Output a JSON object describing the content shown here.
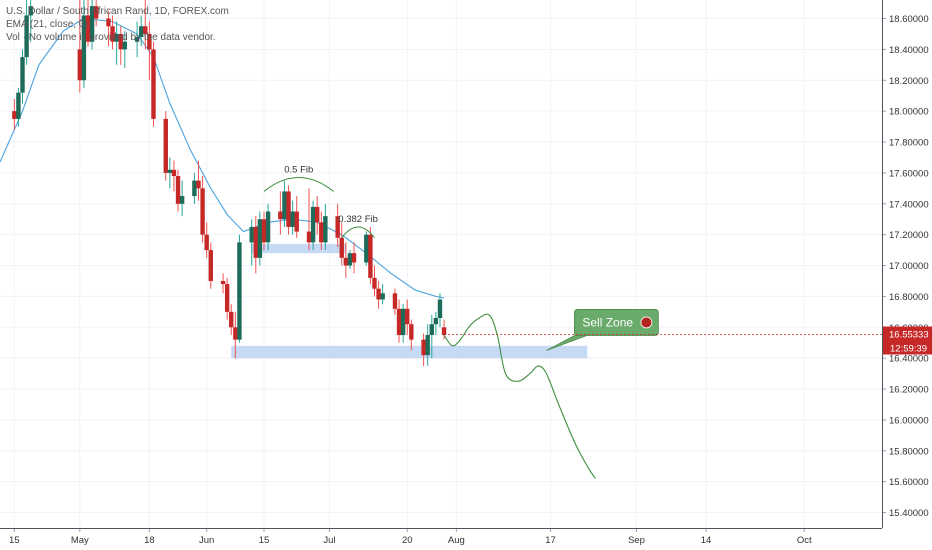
{
  "legend": {
    "title": "U.S. Dollar / South African Rand, 1D, FOREX.com",
    "ema": "EMA (21, close, 0)",
    "volume": "Vol · No volume is provided by the data vendor."
  },
  "colors": {
    "up": "#26a69a",
    "down": "#ef5350",
    "up_body": "#1e6b5a",
    "down_body": "#c62828",
    "ema": "#4aa3df",
    "zone": "#bcd4f5",
    "projection": "#3f8f3f",
    "callout": "#6aaa6a",
    "price_badge": "#c62828"
  },
  "chart_data": {
    "type": "candlestick",
    "title": "U.S. Dollar / South African Rand, 1D, FOREX.com",
    "ylim": [
      15.3,
      18.72
    ],
    "y_ticks": [
      "18.60000",
      "18.40000",
      "18.20000",
      "18.00000",
      "17.80000",
      "17.60000",
      "17.40000",
      "17.20000",
      "17.00000",
      "16.80000",
      "16.60000",
      "16.40000",
      "16.20000",
      "16.00000",
      "15.80000",
      "15.60000",
      "15.40000"
    ],
    "x_ticks": [
      {
        "label": "15",
        "day": 0
      },
      {
        "label": "May",
        "day": 16
      },
      {
        "label": "18",
        "day": 33
      },
      {
        "label": "Jun",
        "day": 47
      },
      {
        "label": "15",
        "day": 61
      },
      {
        "label": "Jul",
        "day": 77
      },
      {
        "label": "20",
        "day": 96
      },
      {
        "label": "Aug",
        "day": 108
      },
      {
        "label": "17",
        "day": 131
      },
      {
        "label": "Sep",
        "day": 152
      },
      {
        "label": "14",
        "day": 169
      },
      {
        "label": "Oct",
        "day": 193
      }
    ],
    "x_range": [
      -3.5,
      212
    ],
    "candles": [
      {
        "d": 0,
        "o": 18.0,
        "h": 18.08,
        "l": 17.88,
        "c": 17.95
      },
      {
        "d": 1,
        "o": 17.95,
        "h": 18.15,
        "l": 17.9,
        "c": 18.12
      },
      {
        "d": 2,
        "o": 18.12,
        "h": 18.4,
        "l": 18.05,
        "c": 18.35
      },
      {
        "d": 3,
        "o": 18.35,
        "h": 18.72,
        "l": 18.3,
        "c": 18.62
      },
      {
        "d": 4,
        "o": 18.62,
        "h": 18.72,
        "l": 18.45,
        "c": 18.68
      },
      {
        "d": 16,
        "o": 18.4,
        "h": 18.72,
        "l": 18.12,
        "c": 18.2
      },
      {
        "d": 17,
        "o": 18.2,
        "h": 18.72,
        "l": 18.15,
        "c": 18.62
      },
      {
        "d": 18,
        "o": 18.62,
        "h": 18.72,
        "l": 18.42,
        "c": 18.45
      },
      {
        "d": 19,
        "o": 18.45,
        "h": 18.72,
        "l": 18.4,
        "c": 18.68
      },
      {
        "d": 20,
        "o": 18.68,
        "h": 18.72,
        "l": 18.55,
        "c": 18.6
      },
      {
        "d": 23,
        "o": 18.6,
        "h": 18.65,
        "l": 18.42,
        "c": 18.55
      },
      {
        "d": 24,
        "o": 18.55,
        "h": 18.62,
        "l": 18.4,
        "c": 18.45
      },
      {
        "d": 25,
        "o": 18.45,
        "h": 18.58,
        "l": 18.3,
        "c": 18.5
      },
      {
        "d": 26,
        "o": 18.5,
        "h": 18.55,
        "l": 18.3,
        "c": 18.4
      },
      {
        "d": 27,
        "o": 18.4,
        "h": 18.52,
        "l": 18.28,
        "c": 18.45
      },
      {
        "d": 30,
        "o": 18.45,
        "h": 18.58,
        "l": 18.35,
        "c": 18.48
      },
      {
        "d": 31,
        "o": 18.48,
        "h": 18.62,
        "l": 18.42,
        "c": 18.55
      },
      {
        "d": 32,
        "o": 18.55,
        "h": 18.72,
        "l": 18.4,
        "c": 18.5
      },
      {
        "d": 33,
        "o": 18.5,
        "h": 18.58,
        "l": 18.2,
        "c": 18.4
      },
      {
        "d": 34,
        "o": 18.4,
        "h": 18.45,
        "l": 17.9,
        "c": 17.95
      },
      {
        "d": 37,
        "o": 17.95,
        "h": 18.0,
        "l": 17.55,
        "c": 17.6
      },
      {
        "d": 38,
        "o": 17.6,
        "h": 17.7,
        "l": 17.5,
        "c": 17.62
      },
      {
        "d": 39,
        "o": 17.62,
        "h": 17.68,
        "l": 17.48,
        "c": 17.58
      },
      {
        "d": 40,
        "o": 17.58,
        "h": 17.62,
        "l": 17.35,
        "c": 17.4
      },
      {
        "d": 41,
        "o": 17.4,
        "h": 17.55,
        "l": 17.32,
        "c": 17.45
      },
      {
        "d": 44,
        "o": 17.45,
        "h": 17.6,
        "l": 17.4,
        "c": 17.55
      },
      {
        "d": 45,
        "o": 17.55,
        "h": 17.68,
        "l": 17.42,
        "c": 17.5
      },
      {
        "d": 46,
        "o": 17.5,
        "h": 17.58,
        "l": 17.15,
        "c": 17.2
      },
      {
        "d": 47,
        "o": 17.2,
        "h": 17.28,
        "l": 17.05,
        "c": 17.1
      },
      {
        "d": 48,
        "o": 17.1,
        "h": 17.15,
        "l": 16.85,
        "c": 16.9
      },
      {
        "d": 51,
        "o": 16.9,
        "h": 16.95,
        "l": 16.82,
        "c": 16.88
      },
      {
        "d": 52,
        "o": 16.88,
        "h": 16.92,
        "l": 16.65,
        "c": 16.7
      },
      {
        "d": 53,
        "o": 16.7,
        "h": 16.75,
        "l": 16.55,
        "c": 16.6
      },
      {
        "d": 54,
        "o": 16.6,
        "h": 16.7,
        "l": 16.4,
        "c": 16.52
      },
      {
        "d": 55,
        "o": 16.52,
        "h": 17.2,
        "l": 16.5,
        "c": 17.15
      },
      {
        "d": 58,
        "o": 17.15,
        "h": 17.3,
        "l": 17.0,
        "c": 17.25
      },
      {
        "d": 59,
        "o": 17.25,
        "h": 17.32,
        "l": 16.95,
        "c": 17.05
      },
      {
        "d": 60,
        "o": 17.05,
        "h": 17.35,
        "l": 17.0,
        "c": 17.3
      },
      {
        "d": 61,
        "o": 17.3,
        "h": 17.35,
        "l": 17.1,
        "c": 17.15
      },
      {
        "d": 62,
        "o": 17.15,
        "h": 17.4,
        "l": 17.1,
        "c": 17.35
      },
      {
        "d": 65,
        "o": 17.35,
        "h": 17.48,
        "l": 17.2,
        "c": 17.3
      },
      {
        "d": 66,
        "o": 17.3,
        "h": 17.55,
        "l": 17.25,
        "c": 17.48
      },
      {
        "d": 67,
        "o": 17.48,
        "h": 17.52,
        "l": 17.2,
        "c": 17.25
      },
      {
        "d": 68,
        "o": 17.25,
        "h": 17.42,
        "l": 17.2,
        "c": 17.35
      },
      {
        "d": 69,
        "o": 17.35,
        "h": 17.45,
        "l": 17.18,
        "c": 17.22
      },
      {
        "d": 72,
        "o": 17.22,
        "h": 17.5,
        "l": 17.1,
        "c": 17.15
      },
      {
        "d": 73,
        "o": 17.15,
        "h": 17.42,
        "l": 17.1,
        "c": 17.38
      },
      {
        "d": 74,
        "o": 17.38,
        "h": 17.45,
        "l": 17.2,
        "c": 17.28
      },
      {
        "d": 75,
        "o": 17.28,
        "h": 17.35,
        "l": 17.1,
        "c": 17.15
      },
      {
        "d": 76,
        "o": 17.15,
        "h": 17.4,
        "l": 17.1,
        "c": 17.32
      },
      {
        "d": 79,
        "o": 17.32,
        "h": 17.4,
        "l": 17.12,
        "c": 17.18
      },
      {
        "d": 80,
        "o": 17.18,
        "h": 17.28,
        "l": 17.0,
        "c": 17.05
      },
      {
        "d": 81,
        "o": 17.05,
        "h": 17.15,
        "l": 16.92,
        "c": 17.0
      },
      {
        "d": 82,
        "o": 17.0,
        "h": 17.1,
        "l": 16.98,
        "c": 17.08
      },
      {
        "d": 83,
        "o": 17.08,
        "h": 17.15,
        "l": 16.95,
        "c": 17.02
      },
      {
        "d": 86,
        "o": 17.02,
        "h": 17.22,
        "l": 17.0,
        "c": 17.2
      },
      {
        "d": 87,
        "o": 17.2,
        "h": 17.25,
        "l": 16.88,
        "c": 16.92
      },
      {
        "d": 88,
        "o": 16.92,
        "h": 17.0,
        "l": 16.8,
        "c": 16.85
      },
      {
        "d": 89,
        "o": 16.85,
        "h": 16.9,
        "l": 16.72,
        "c": 16.78
      },
      {
        "d": 90,
        "o": 16.78,
        "h": 16.88,
        "l": 16.75,
        "c": 16.82
      },
      {
        "d": 93,
        "o": 16.82,
        "h": 16.85,
        "l": 16.68,
        "c": 16.72
      },
      {
        "d": 94,
        "o": 16.72,
        "h": 16.78,
        "l": 16.5,
        "c": 16.55
      },
      {
        "d": 95,
        "o": 16.55,
        "h": 16.75,
        "l": 16.5,
        "c": 16.72
      },
      {
        "d": 96,
        "o": 16.72,
        "h": 16.78,
        "l": 16.55,
        "c": 16.62
      },
      {
        "d": 97,
        "o": 16.62,
        "h": 16.65,
        "l": 16.45,
        "c": 16.52
      },
      {
        "d": 100,
        "o": 16.52,
        "h": 16.56,
        "l": 16.35,
        "c": 16.42
      },
      {
        "d": 101,
        "o": 16.42,
        "h": 16.62,
        "l": 16.35,
        "c": 16.55
      },
      {
        "d": 102,
        "o": 16.55,
        "h": 16.68,
        "l": 16.4,
        "c": 16.62
      },
      {
        "d": 103,
        "o": 16.62,
        "h": 16.7,
        "l": 16.55,
        "c": 16.66
      },
      {
        "d": 104,
        "o": 16.66,
        "h": 16.82,
        "l": 16.6,
        "c": 16.78
      },
      {
        "d": 105,
        "o": 16.6,
        "h": 16.65,
        "l": 16.52,
        "c": 16.55
      }
    ],
    "ema": [
      [
        -3.5,
        17.67
      ],
      [
        2,
        18.0
      ],
      [
        6,
        18.3
      ],
      [
        12,
        18.52
      ],
      [
        17,
        18.6
      ],
      [
        24,
        18.58
      ],
      [
        30,
        18.5
      ],
      [
        34,
        18.35
      ],
      [
        38,
        18.05
      ],
      [
        43,
        17.75
      ],
      [
        48,
        17.5
      ],
      [
        52,
        17.33
      ],
      [
        56,
        17.22
      ],
      [
        62,
        17.28
      ],
      [
        68,
        17.3
      ],
      [
        74,
        17.28
      ],
      [
        80,
        17.2
      ],
      [
        86,
        17.08
      ],
      [
        92,
        16.95
      ],
      [
        98,
        16.84
      ],
      [
        103,
        16.8
      ],
      [
        105,
        16.79
      ]
    ],
    "support_zones": [
      {
        "x0": 58,
        "x1": 81,
        "y0": 17.08,
        "y1": 17.14
      },
      {
        "x0": 53,
        "x1": 140,
        "y0": 16.4,
        "y1": 16.48
      }
    ],
    "fib_arcs": [
      {
        "label": "0.5 Fib",
        "x0": 61,
        "x1": 78,
        "y": 17.48,
        "peak": 17.57
      },
      {
        "label": "0.382 Fib",
        "x0": 80,
        "x1": 88,
        "y": 17.18,
        "peak": 17.25
      }
    ],
    "projection": [
      [
        105,
        16.55
      ],
      [
        107,
        16.48
      ],
      [
        109,
        16.52
      ],
      [
        111,
        16.6
      ],
      [
        113,
        16.65
      ],
      [
        116,
        16.68
      ],
      [
        118,
        16.55
      ],
      [
        120,
        16.3
      ],
      [
        123,
        16.25
      ],
      [
        126,
        16.3
      ],
      [
        128,
        16.35
      ],
      [
        130,
        16.3
      ],
      [
        133,
        16.1
      ],
      [
        137,
        15.85
      ],
      [
        140,
        15.7
      ],
      [
        142,
        15.62
      ]
    ],
    "annotation": {
      "text": "Sell Zone",
      "anchor_day": 130,
      "anchor_y": 16.45
    },
    "current_price": "16.55333",
    "current_price_value": 16.55333,
    "countdown": "12:59:39"
  }
}
